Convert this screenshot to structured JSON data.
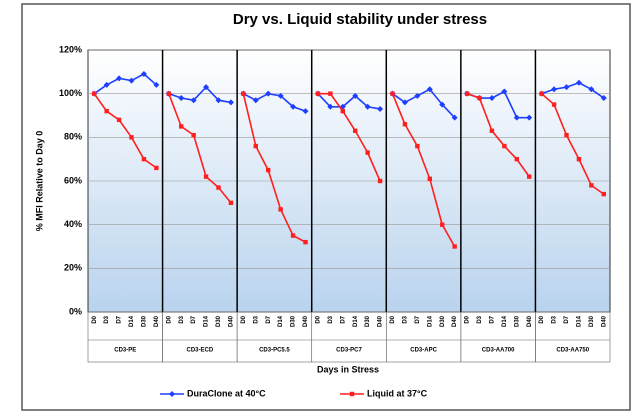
{
  "chart_data": {
    "type": "line",
    "title": "Dry vs. Liquid stability under stress",
    "y_label": "% MFI Relative to Day 0",
    "x_label": "Days in Stress",
    "groups": [
      "CD3-PE",
      "CD3-ECD",
      "CD3-PC5.5",
      "CD3-PC7",
      "CD3-APC",
      "CD3-AA700",
      "CD3-AA750"
    ],
    "categories": [
      "D0",
      "D3",
      "D7",
      "D14",
      "D30",
      "D40",
      "D0",
      "D3",
      "D7",
      "D14",
      "D30",
      "D40",
      "D0",
      "D3",
      "D7",
      "D14",
      "D30",
      "D40",
      "D0",
      "D3",
      "D7",
      "D14",
      "D30",
      "D40",
      "D0",
      "D3",
      "D7",
      "D14",
      "D30",
      "D40",
      "D0",
      "D3",
      "D7",
      "D14",
      "D30",
      "D40",
      "D0",
      "D3",
      "D7",
      "D14",
      "D30",
      "D40"
    ],
    "series": [
      {
        "name": "DuraClone at 40°C",
        "color": "#1f3fff",
        "marker": "diamond",
        "values": [
          100,
          104,
          107,
          106,
          109,
          104,
          100,
          98,
          97,
          103,
          97,
          96,
          100,
          97,
          100,
          99,
          94,
          92,
          100,
          94,
          94,
          99,
          94,
          93,
          100,
          96,
          99,
          102,
          95,
          89,
          100,
          98,
          98,
          101,
          89,
          89,
          100,
          102,
          103,
          105,
          102,
          98
        ]
      },
      {
        "name": "Liquid at 37°C",
        "color": "#ff1f1f",
        "marker": "square",
        "values": [
          100,
          92,
          88,
          80,
          70,
          66,
          100,
          85,
          81,
          62,
          57,
          50,
          100,
          76,
          65,
          47,
          35,
          32,
          100,
          100,
          92,
          83,
          73,
          60,
          100,
          86,
          76,
          61,
          40,
          30,
          100,
          98,
          83,
          76,
          70,
          62,
          100,
          95,
          81,
          70,
          58,
          54
        ]
      }
    ],
    "ylim": [
      0,
      120
    ],
    "yticks": [
      {
        "value": 0,
        "label": "0%"
      },
      {
        "value": 20,
        "label": "20%"
      },
      {
        "value": 40,
        "label": "40%"
      },
      {
        "value": 60,
        "label": "60%"
      },
      {
        "value": 80,
        "label": "80%"
      },
      {
        "value": 100,
        "label": "100%"
      },
      {
        "value": 120,
        "label": "120%"
      }
    ],
    "grid": true
  }
}
